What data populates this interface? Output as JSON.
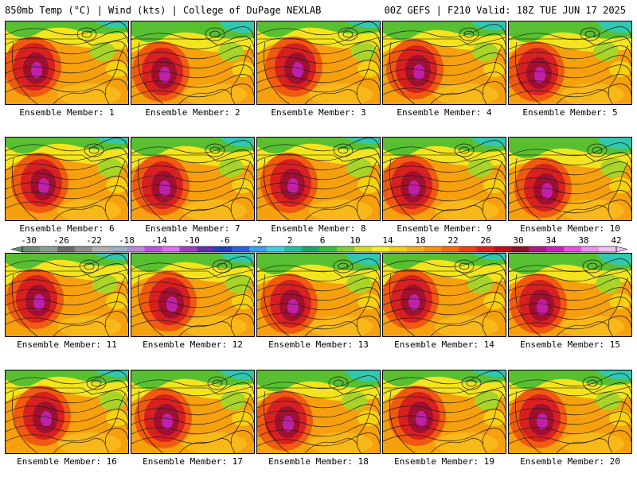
{
  "header": {
    "left_title": "850mb Temp (°C) | Wind (kts) | College of DuPage NEXLAB",
    "right_title": "00Z GEFS | F210 Valid: 18Z TUE JUN 17 2025"
  },
  "panels": [
    {
      "label": "Ensemble Member: 1"
    },
    {
      "label": "Ensemble Member: 2"
    },
    {
      "label": "Ensemble Member: 3"
    },
    {
      "label": "Ensemble Member: 4"
    },
    {
      "label": "Ensemble Member: 5"
    },
    {
      "label": "Ensemble Member: 6"
    },
    {
      "label": "Ensemble Member: 7"
    },
    {
      "label": "Ensemble Member: 8"
    },
    {
      "label": "Ensemble Member: 9"
    },
    {
      "label": "Ensemble Member: 10"
    },
    {
      "label": "Ensemble Member: 11"
    },
    {
      "label": "Ensemble Member: 12"
    },
    {
      "label": "Ensemble Member: 13"
    },
    {
      "label": "Ensemble Member: 14"
    },
    {
      "label": "Ensemble Member: 15"
    },
    {
      "label": "Ensemble Member: 16"
    },
    {
      "label": "Ensemble Member: 17"
    },
    {
      "label": "Ensemble Member: 18"
    },
    {
      "label": "Ensemble Member: 19"
    },
    {
      "label": "Ensemble Member: 20"
    }
  ],
  "colorbar": {
    "labels": [
      "-30",
      "-26",
      "-22",
      "-18",
      "-14",
      "-10",
      "-6",
      "-2",
      "2",
      "6",
      "10",
      "14",
      "18",
      "22",
      "26",
      "30",
      "34",
      "38",
      "42"
    ],
    "colors": [
      "#6f8c74",
      "#8aa08f",
      "#6b6b6b",
      "#8e8e8e",
      "#b0b0b0",
      "#9ab0c8",
      "#b88ad8",
      "#c050e0",
      "#e070f0",
      "#a040c0",
      "#6030b0",
      "#2040c0",
      "#2a60e0",
      "#3aa0f0",
      "#40d0e0",
      "#20c0a0",
      "#18a868",
      "#30c040",
      "#80d030",
      "#d0e020",
      "#f8f020",
      "#f8d010",
      "#f8b010",
      "#f89008",
      "#f86a08",
      "#f04010",
      "#e02020",
      "#c01018",
      "#901028",
      "#b01888",
      "#d020c0",
      "#e850e0",
      "#f090f0",
      "#f0c0f0"
    ]
  }
}
